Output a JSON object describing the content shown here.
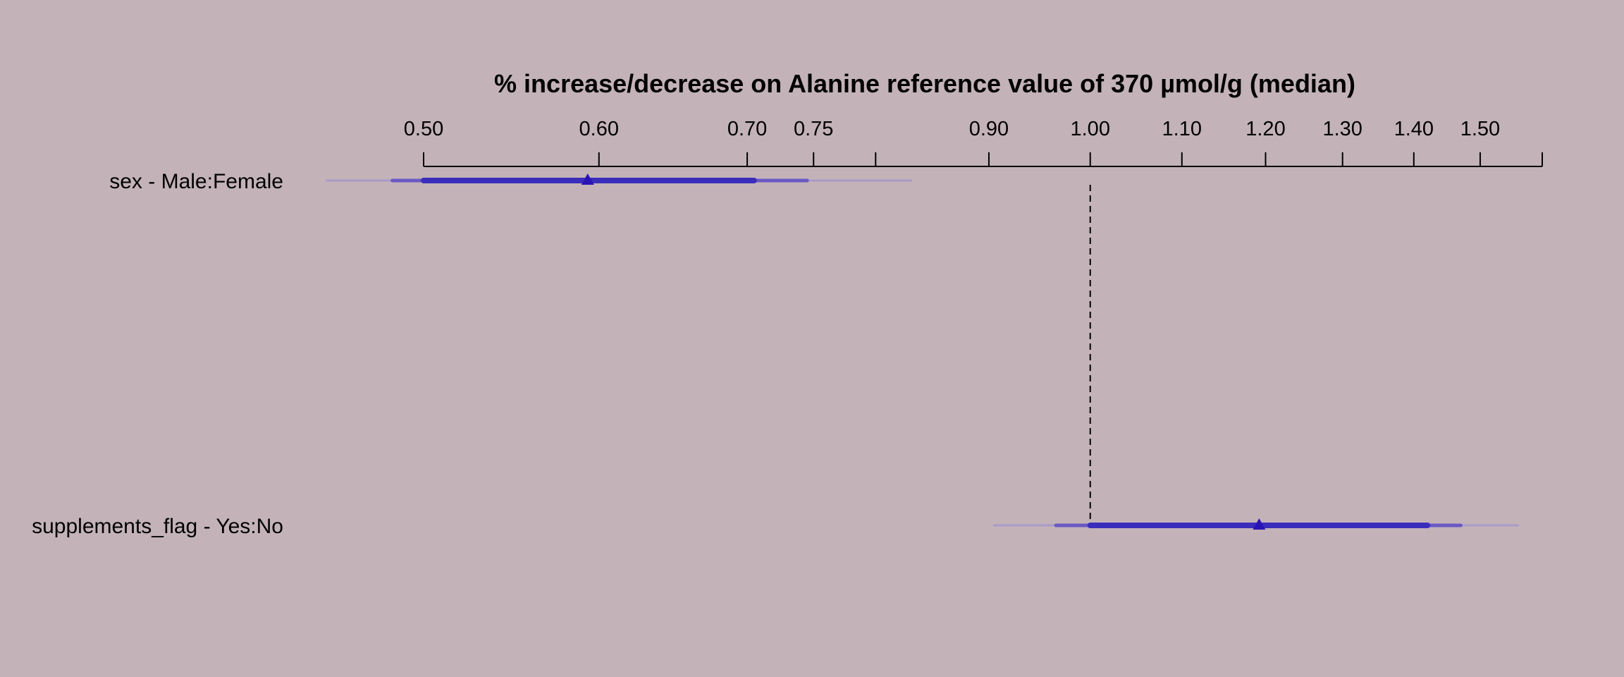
{
  "chart_data": {
    "type": "forest",
    "title": "% increase/decrease on Alanine reference value of 370 µmol/g (median)",
    "x_scale": "log",
    "xlim": [
      0.446,
      1.62
    ],
    "axis_ticks": [
      0.5,
      0.6,
      0.7,
      0.75,
      0.8,
      0.9,
      1.0,
      1.1,
      1.2,
      1.3,
      1.4,
      1.5,
      1.6
    ],
    "tick_labels": [
      "0.50",
      "0.60",
      "0.70",
      "0.75",
      "",
      "0.90",
      "1.00",
      "1.10",
      "1.20",
      "1.30",
      "1.40",
      "1.50",
      ""
    ],
    "reference_line": 1.0,
    "reference_line_style": "dashed",
    "colors": {
      "background": "#c3b3b8",
      "estimate": "#2a14b4",
      "ci_inner": "#3b2dbc",
      "ci_middle": "#6a58c4",
      "ci_outer": "#a89ac8"
    },
    "rows": [
      {
        "label": "sex - Male:Female",
        "estimate": 0.593,
        "ci_inner": [
          0.5,
          0.705
        ],
        "ci_middle": [
          0.484,
          0.745
        ],
        "ci_outer": [
          0.452,
          0.83
        ]
      },
      {
        "label": "supplements_flag - Yes:No",
        "estimate": 1.192,
        "ci_inner": [
          1.0,
          1.42
        ],
        "ci_middle": [
          0.965,
          1.47
        ],
        "ci_outer": [
          0.905,
          1.56
        ]
      }
    ]
  }
}
